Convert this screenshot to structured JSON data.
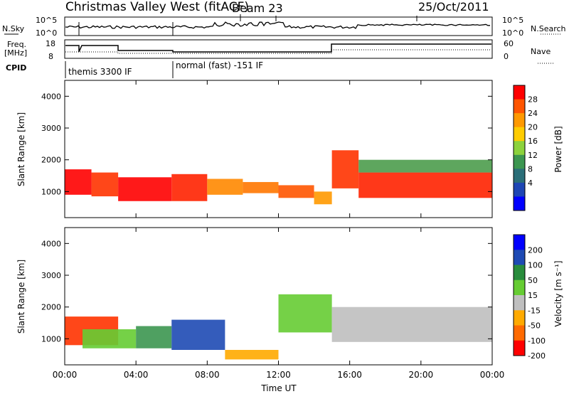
{
  "header": {
    "title": "Christmas Valley West (fitACF)",
    "beam": "Beam 23",
    "date": "25/Oct/2011"
  },
  "top_panels": {
    "nsky_label": "N.Sky",
    "nsky_ticks": [
      "10^5",
      "10^0"
    ],
    "nsearch_label": "N.Search",
    "nsearch_ticks": [
      "10^5",
      "10^0"
    ],
    "freq_label_1": "Freq.",
    "freq_label_2": "[MHz]",
    "freq_ticks": [
      "18",
      "8"
    ],
    "nave_label": "Nave",
    "nave_ticks": [
      "60",
      "0"
    ],
    "cpid_label": "CPID",
    "cpid_entries": [
      {
        "text": "themis 3300 IF",
        "start_hour": 0
      },
      {
        "text": "normal (fast) -151 IF",
        "start_hour": 6
      }
    ]
  },
  "xaxis": {
    "label": "Time UT",
    "ticks": [
      "00:00",
      "04:00",
      "08:00",
      "12:00",
      "16:00",
      "20:00",
      "00:00"
    ]
  },
  "power_colorbar": {
    "title": "Power [dB]",
    "ticks": [
      "28",
      "24",
      "20",
      "16",
      "12",
      "8",
      "4"
    ],
    "colors": [
      "#ff0000",
      "#ff5500",
      "#ff9900",
      "#ffcc00",
      "#8cd23c",
      "#3c9650",
      "#2a6e78",
      "#1e46b4",
      "#0000ff"
    ]
  },
  "velocity_colorbar": {
    "title": "Velocity [m s⁻¹]",
    "ticks": [
      "200",
      "100",
      "50",
      "15",
      "-15",
      "-50",
      "-100",
      "-200"
    ],
    "colors": [
      "#0000ff",
      "#1e4ab4",
      "#288c3c",
      "#66cc33",
      "#bfbfbf",
      "#ffaa00",
      "#ff6a00",
      "#ff0000"
    ]
  },
  "chart_data": [
    {
      "type": "heatmap",
      "name": "power",
      "ylabel": "Slant Range [km]",
      "yticks": [
        "1000",
        "2000",
        "3000",
        "4000"
      ],
      "yticks_values": [
        1000,
        2000,
        3000,
        4000
      ],
      "xlim_hours": [
        0,
        24
      ],
      "ylim_km": [
        180,
        4500
      ],
      "bands": [
        {
          "t0": 0.0,
          "t1": 1.5,
          "r0": 900,
          "r1": 1700,
          "c": "#ff0000"
        },
        {
          "t0": 1.5,
          "t1": 3.0,
          "r0": 850,
          "r1": 1600,
          "c": "#ff3300"
        },
        {
          "t0": 3.0,
          "t1": 6.0,
          "r0": 700,
          "r1": 1450,
          "c": "#ff0000"
        },
        {
          "t0": 6.0,
          "t1": 8.0,
          "r0": 700,
          "r1": 1550,
          "c": "#ff2200"
        },
        {
          "t0": 8.0,
          "t1": 10.0,
          "r0": 900,
          "r1": 1400,
          "c": "#ff8800"
        },
        {
          "t0": 10.0,
          "t1": 12.0,
          "r0": 950,
          "r1": 1300,
          "c": "#ff7700"
        },
        {
          "t0": 12.0,
          "t1": 14.0,
          "r0": 800,
          "r1": 1200,
          "c": "#ff5500"
        },
        {
          "t0": 14.0,
          "t1": 15.0,
          "r0": 600,
          "r1": 1000,
          "c": "#ff9900"
        },
        {
          "t0": 15.0,
          "t1": 16.5,
          "r0": 1100,
          "r1": 2300,
          "c": "#ff3300"
        },
        {
          "t0": 16.5,
          "t1": 24.0,
          "r0": 800,
          "r1": 1600,
          "c": "#ff2200"
        },
        {
          "t0": 16.5,
          "t1": 24.0,
          "r0": 1600,
          "r1": 2000,
          "c": "#4c9c4c"
        }
      ]
    },
    {
      "type": "heatmap",
      "name": "velocity",
      "ylabel": "Slant Range [km]",
      "yticks": [
        "1000",
        "2000",
        "3000",
        "4000"
      ],
      "yticks_values": [
        1000,
        2000,
        3000,
        4000
      ],
      "xlim_hours": [
        0,
        24
      ],
      "ylim_km": [
        180,
        4500
      ],
      "bands": [
        {
          "t0": 0.0,
          "t1": 3.0,
          "r0": 800,
          "r1": 1700,
          "c": "#ff3300"
        },
        {
          "t0": 1.0,
          "t1": 4.0,
          "r0": 700,
          "r1": 1300,
          "c": "#66cc33"
        },
        {
          "t0": 4.0,
          "t1": 6.0,
          "r0": 700,
          "r1": 1400,
          "c": "#3c9650"
        },
        {
          "t0": 6.0,
          "t1": 9.0,
          "r0": 650,
          "r1": 1600,
          "c": "#1e4ab4"
        },
        {
          "t0": 9.0,
          "t1": 12.0,
          "r0": 350,
          "r1": 650,
          "c": "#ffaa00"
        },
        {
          "t0": 12.0,
          "t1": 15.0,
          "r0": 1200,
          "r1": 2400,
          "c": "#66cc33"
        },
        {
          "t0": 15.0,
          "t1": 24.0,
          "r0": 900,
          "r1": 2000,
          "c": "#bfbfbf"
        }
      ]
    }
  ]
}
